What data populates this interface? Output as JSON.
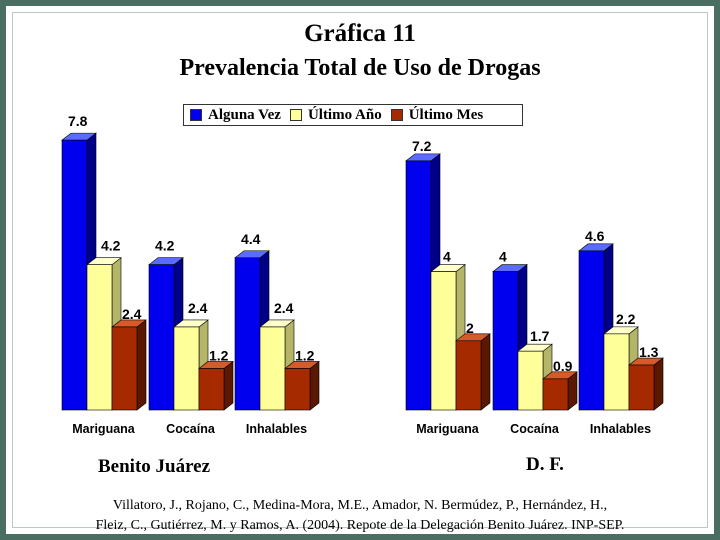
{
  "title_line1": "Gráfica 11",
  "title_line2": "Prevalencia Total de Uso de Drogas",
  "legend": [
    {
      "label": "Alguna Vez",
      "color": "#0000ee"
    },
    {
      "label": "Último Año",
      "color": "#ffff99"
    },
    {
      "label": "Último Mes",
      "color": "#a52a00"
    }
  ],
  "citation_line1": "Villatoro, J., Rojano, C., Medina-Mora, M.E., Amador, N. Bermúdez, P., Hernández, H.,",
  "citation_line2": "Fleiz, C., Gutiérrez, M. y Ramos, A. (2004). Repote de la Delegación Benito Juárez. INP-SEP.",
  "chart_data": [
    {
      "type": "bar",
      "group_label": "Benito Juárez",
      "categories": [
        "Mariguana",
        "Cocaína",
        "Inhalables"
      ],
      "series": [
        {
          "name": "Alguna Vez",
          "values": [
            7.8,
            4.2,
            4.4
          ]
        },
        {
          "name": "Último Año",
          "values": [
            4.2,
            2.4,
            2.4
          ]
        },
        {
          "name": "Último Mes",
          "values": [
            2.4,
            1.2,
            1.2
          ]
        }
      ],
      "grid": false,
      "legend_position": "top"
    },
    {
      "type": "bar",
      "group_label": "D. F.",
      "categories": [
        "Mariguana",
        "Cocaína",
        "Inhalables"
      ],
      "series": [
        {
          "name": "Alguna Vez",
          "values": [
            7.2,
            4,
            4.6
          ]
        },
        {
          "name": "Último Año",
          "values": [
            4,
            1.7,
            2.2
          ]
        },
        {
          "name": "Último Mes",
          "values": [
            2,
            0.9,
            1.3
          ]
        }
      ],
      "grid": false,
      "legend_position": "top"
    }
  ]
}
